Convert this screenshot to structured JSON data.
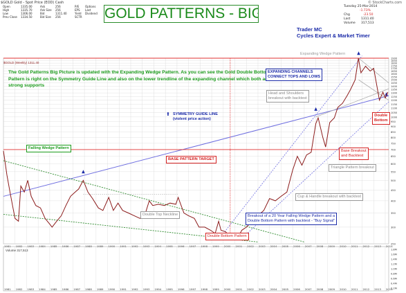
{
  "header": {
    "logo": "$GOLD",
    "subtitle": "Gold - Spot Price (EOD) Cash",
    "stockcharts": "© StockCharts.com",
    "date": "Tuesday 25-Mar-2014",
    "chg_pct": "-1.73%",
    "chg_val": "-23.50",
    "last": "1311.40",
    "volume": "317,513",
    "stats_left": [
      [
        "Open",
        "1335.00",
        "Ask",
        "256",
        "P/E",
        ""
      ],
      [
        "High",
        "1335.70",
        "Ask Size",
        "256",
        "EPS",
        ""
      ],
      [
        "Low",
        "1306.00",
        "Bid",
        "1311.40",
        "Yield",
        ""
      ],
      [
        "Prev Close",
        "1334.50",
        "Bid Size",
        "256",
        "SCTR",
        ""
      ]
    ],
    "stats_extra": [
      "Options",
      "Last",
      "Dividend",
      ""
    ],
    "right_labels": [
      "Chg",
      "Last",
      "Volume"
    ]
  },
  "title": "GOLD PATTERNS - BIG PICTURE -",
  "trader": {
    "line1": "Trader MC",
    "line2": "Cycles Expert & Market Timer"
  },
  "legend": {
    "price_series": "$GOLD (Weekly) 1311.40",
    "volume_series": "Volume 317,513"
  },
  "info_text": "The Gold Patterns Big Picture is updated with the Expanding Wedge Pattern. As you can see the Gold Double Bottom Pattern is right on the Symmetry Guide Line and also on the lower trendline of the expanding channel which both act as strong supports",
  "annotations": {
    "expanding_wedge": "Expanding Wedge Pattern",
    "expanding_channels": [
      "EXPANDING CHANNELS",
      "CONNECT TOPS AND LOWS"
    ],
    "head_shoulders": [
      "Head and Shoulders",
      "breakout with backtest"
    ],
    "symmetry": [
      "SYMMETRY GUIDE LINE",
      "(violent price action)"
    ],
    "falling_wedge": "Falling Wedge Pattern",
    "base_target": "BASE PATTERN TARGET",
    "base_breakout": [
      "Base Breakout",
      "and Backtest"
    ],
    "triangle": "Triangle Pattern breakout",
    "cup_handle": "Cup & Handle breakout with backtest",
    "double_top": "Double Top Neckline",
    "breakout_20yr": [
      "Breakout of a 20 Year Falling Wedge Pattern and a",
      "Double Bottom Pattern with backtest - \"Buy Signal\""
    ],
    "double_bottom_pattern": "Double Bottom Pattern",
    "double_bottom": [
      "Double",
      "Bottom"
    ]
  },
  "colors": {
    "price": "#8b1a1a",
    "wedge_green": "#2e8b2e",
    "symmetry_blue": "#6f6fe0",
    "red_line": "#e03030",
    "grid": "#d8d8d8",
    "text_green": "#1a9a1a",
    "text_blue": "#1a2aa8",
    "text_red": "#d42020"
  },
  "chart_data": {
    "type": "line",
    "title": "GOLD PATTERNS - BIG PICTURE -",
    "x_ticks": [
      "1981",
      "1982",
      "1983",
      "1984",
      "1985",
      "1986",
      "1987",
      "1988",
      "1989",
      "1990",
      "1991",
      "1992",
      "1993",
      "1994",
      "1995",
      "1996",
      "1997",
      "1998",
      "1999",
      "2000",
      "2001",
      "2002",
      "2003",
      "2004",
      "2005",
      "2006",
      "2007",
      "2008",
      "2009",
      "2010",
      "2011",
      "2012",
      "2013",
      "2014"
    ],
    "y_ticks": [
      250,
      300,
      350,
      400,
      450,
      500,
      550,
      600,
      650,
      700,
      750,
      800,
      850,
      900,
      950,
      1000,
      1050,
      1100,
      1150,
      1200,
      1250,
      1300,
      1350,
      1400,
      1450,
      1500,
      1550,
      1600,
      1650,
      1700,
      1750,
      1800,
      1850,
      1900
    ],
    "y_scale": "log",
    "ylim": [
      250,
      1900
    ],
    "volume_ticks": [
      "1.8M",
      "1.6M",
      "1.4M",
      "1.2M",
      "1.0M",
      "0.8M",
      "0.6M",
      "0.4M",
      "0.2M"
    ],
    "series": [
      {
        "name": "$GOLD (Weekly) 1311.40",
        "x": [
          1981.0,
          1981.3,
          1981.6,
          1982.0,
          1982.3,
          1982.5,
          1982.8,
          1983.1,
          1983.4,
          1983.8,
          1984.2,
          1984.6,
          1985.0,
          1985.2,
          1985.6,
          1986.0,
          1986.4,
          1986.8,
          1987.2,
          1987.5,
          1987.9,
          1988.3,
          1988.7,
          1989.2,
          1989.6,
          1990.1,
          1990.5,
          1990.9,
          1991.3,
          1991.8,
          1992.3,
          1992.8,
          1993.2,
          1993.6,
          1993.9,
          1994.4,
          1994.9,
          1995.4,
          1995.9,
          1996.1,
          1996.6,
          1997.0,
          1997.5,
          1997.9,
          1998.4,
          1998.9,
          1999.3,
          1999.6,
          1999.8,
          2000.2,
          2000.6,
          2001.0,
          2001.3,
          2001.6,
          2002.0,
          2002.5,
          2003.0,
          2003.5,
          2004.0,
          2004.5,
          2005.0,
          2005.5,
          2006.0,
          2006.4,
          2006.8,
          2007.2,
          2007.6,
          2008.0,
          2008.2,
          2008.6,
          2008.85,
          2009.2,
          2009.6,
          2009.9,
          2010.3,
          2010.7,
          2011.0,
          2011.4,
          2011.68,
          2011.9,
          2012.3,
          2012.7,
          2013.0,
          2013.3,
          2013.5,
          2013.8,
          2014.0,
          2014.23
        ],
        "values": [
          690,
          530,
          430,
          330,
          320,
          470,
          440,
          500,
          420,
          380,
          370,
          330,
          310,
          300,
          320,
          340,
          380,
          420,
          440,
          455,
          500,
          440,
          410,
          370,
          360,
          415,
          360,
          390,
          360,
          350,
          340,
          330,
          340,
          400,
          380,
          385,
          380,
          390,
          385,
          415,
          350,
          340,
          330,
          300,
          300,
          290,
          280,
          320,
          290,
          285,
          270,
          265,
          270,
          290,
          300,
          320,
          340,
          360,
          410,
          400,
          420,
          440,
          560,
          650,
          590,
          660,
          680,
          930,
          990,
          800,
          720,
          940,
          990,
          1110,
          1160,
          1260,
          1350,
          1500,
          1900,
          1620,
          1740,
          1650,
          1700,
          1380,
          1200,
          1310,
          1230,
          1311
        ]
      }
    ],
    "annotations": [
      "Expanding Wedge Pattern",
      "EXPANDING CHANNELS CONNECT TOPS AND LOWS",
      "Head and Shoulders breakout with backtest",
      "SYMMETRY GUIDE LINE (violent price action)",
      "Falling Wedge Pattern",
      "BASE PATTERN TARGET",
      "Base Breakout and Backtest",
      "Triangle Pattern breakout",
      "Cup & Handle breakout with backtest",
      "Double Top Neckline",
      "Breakout of a 20 Year Falling Wedge Pattern and a Double Bottom Pattern with backtest - \"Buy Signal\"",
      "Double Bottom Pattern",
      "Double Bottom"
    ]
  }
}
